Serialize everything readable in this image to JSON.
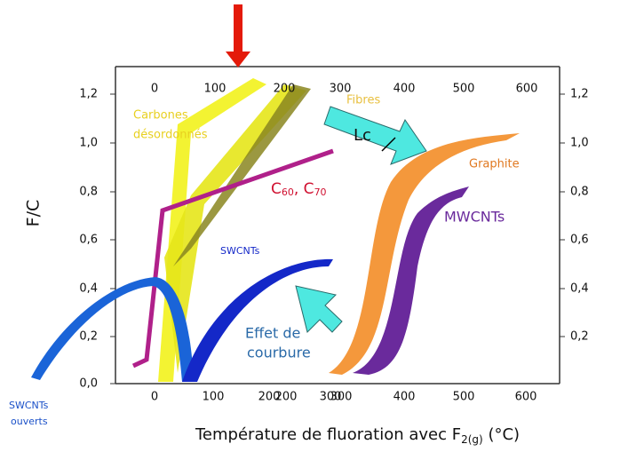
{
  "y_axis": {
    "label": "F/C",
    "left_ticks": [
      "0,0",
      "0,2",
      "0,4",
      "0,6",
      "0,8",
      "1,0",
      "1,2"
    ],
    "right_ticks": [
      "0,2",
      "0,4",
      "0,6",
      "0,8",
      "1,0",
      "1,2"
    ]
  },
  "x_axis": {
    "label_parts": [
      "Température de fluoration avec F",
      "2(g)",
      " (°C)"
    ],
    "bottom_ticks": [
      "0",
      "100",
      "200",
      "300",
      "200",
      "300",
      "400",
      "500",
      "600"
    ],
    "top_ticks": [
      "0",
      "100",
      "200",
      "300",
      "400",
      "500",
      "600"
    ]
  },
  "annotations": {
    "carbones": [
      "Carbones",
      "désordonnés"
    ],
    "fibres": "Fibres",
    "lc": "Lc",
    "graphite": "Graphite",
    "c60_c70": [
      "C",
      "60",
      ",  C",
      "70"
    ],
    "mwcnts": "MWCNTs",
    "swcnts": "SWCNTs",
    "effet": [
      "Effet de",
      "courbure"
    ],
    "swcnts_ouverts": [
      "SWCNTs",
      "ouverts"
    ]
  }
}
